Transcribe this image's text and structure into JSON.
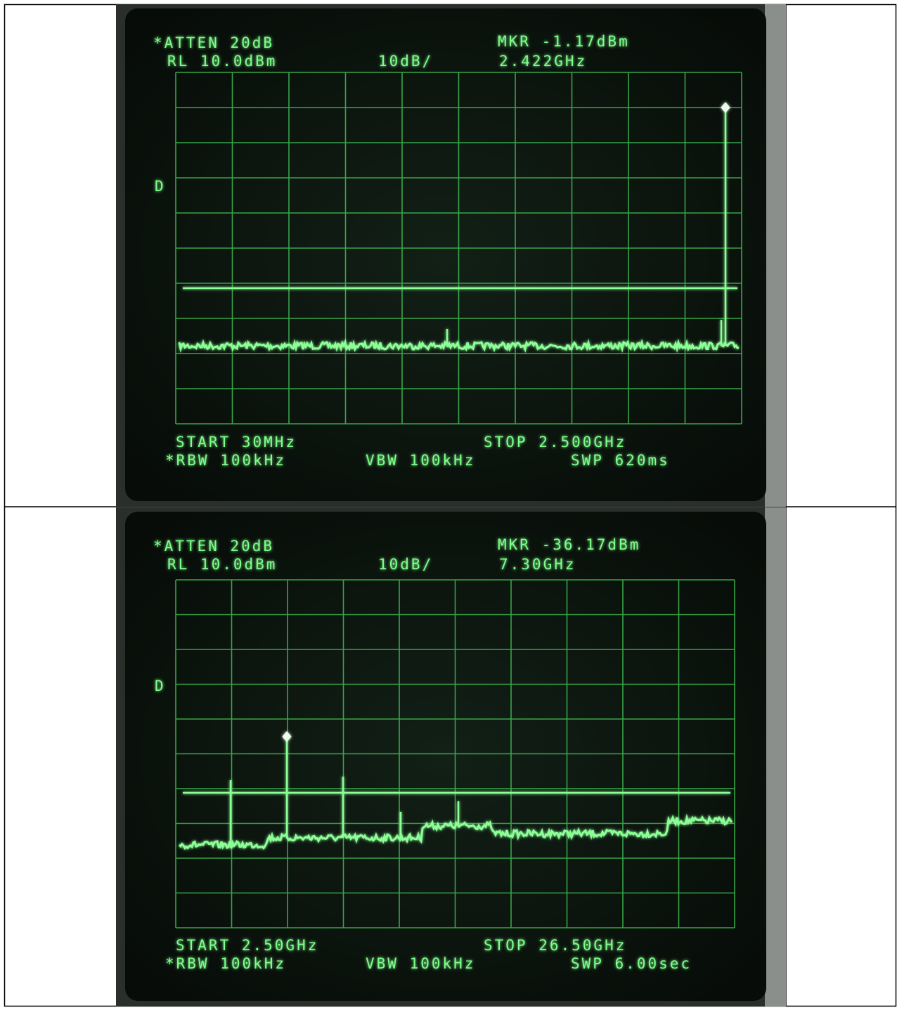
{
  "screens": [
    {
      "atten": "*ATTEN 20dB",
      "rl": "RL 10.0dBm",
      "scale": "10dB/",
      "marker": "MKR -1.17dBm",
      "marker_freq": "2.422GHz",
      "mode": "D",
      "start": "START 30MHz",
      "stop": "STOP 2.500GHz",
      "rbw": "*RBW 100kHz",
      "vbw": "VBW 100kHz",
      "swp": "SWP 620ms"
    },
    {
      "atten": "*ATTEN 20dB",
      "rl": "RL 10.0dBm",
      "scale": "10dB/",
      "marker": "MKR -36.17dBm",
      "marker_freq": "7.30GHz",
      "mode": "D",
      "start": "START 2.50GHz",
      "stop": "STOP 26.50GHz",
      "rbw": "*RBW 100kHz",
      "vbw": "VBW 100kHz",
      "swp": "SWP 6.00sec"
    }
  ]
}
